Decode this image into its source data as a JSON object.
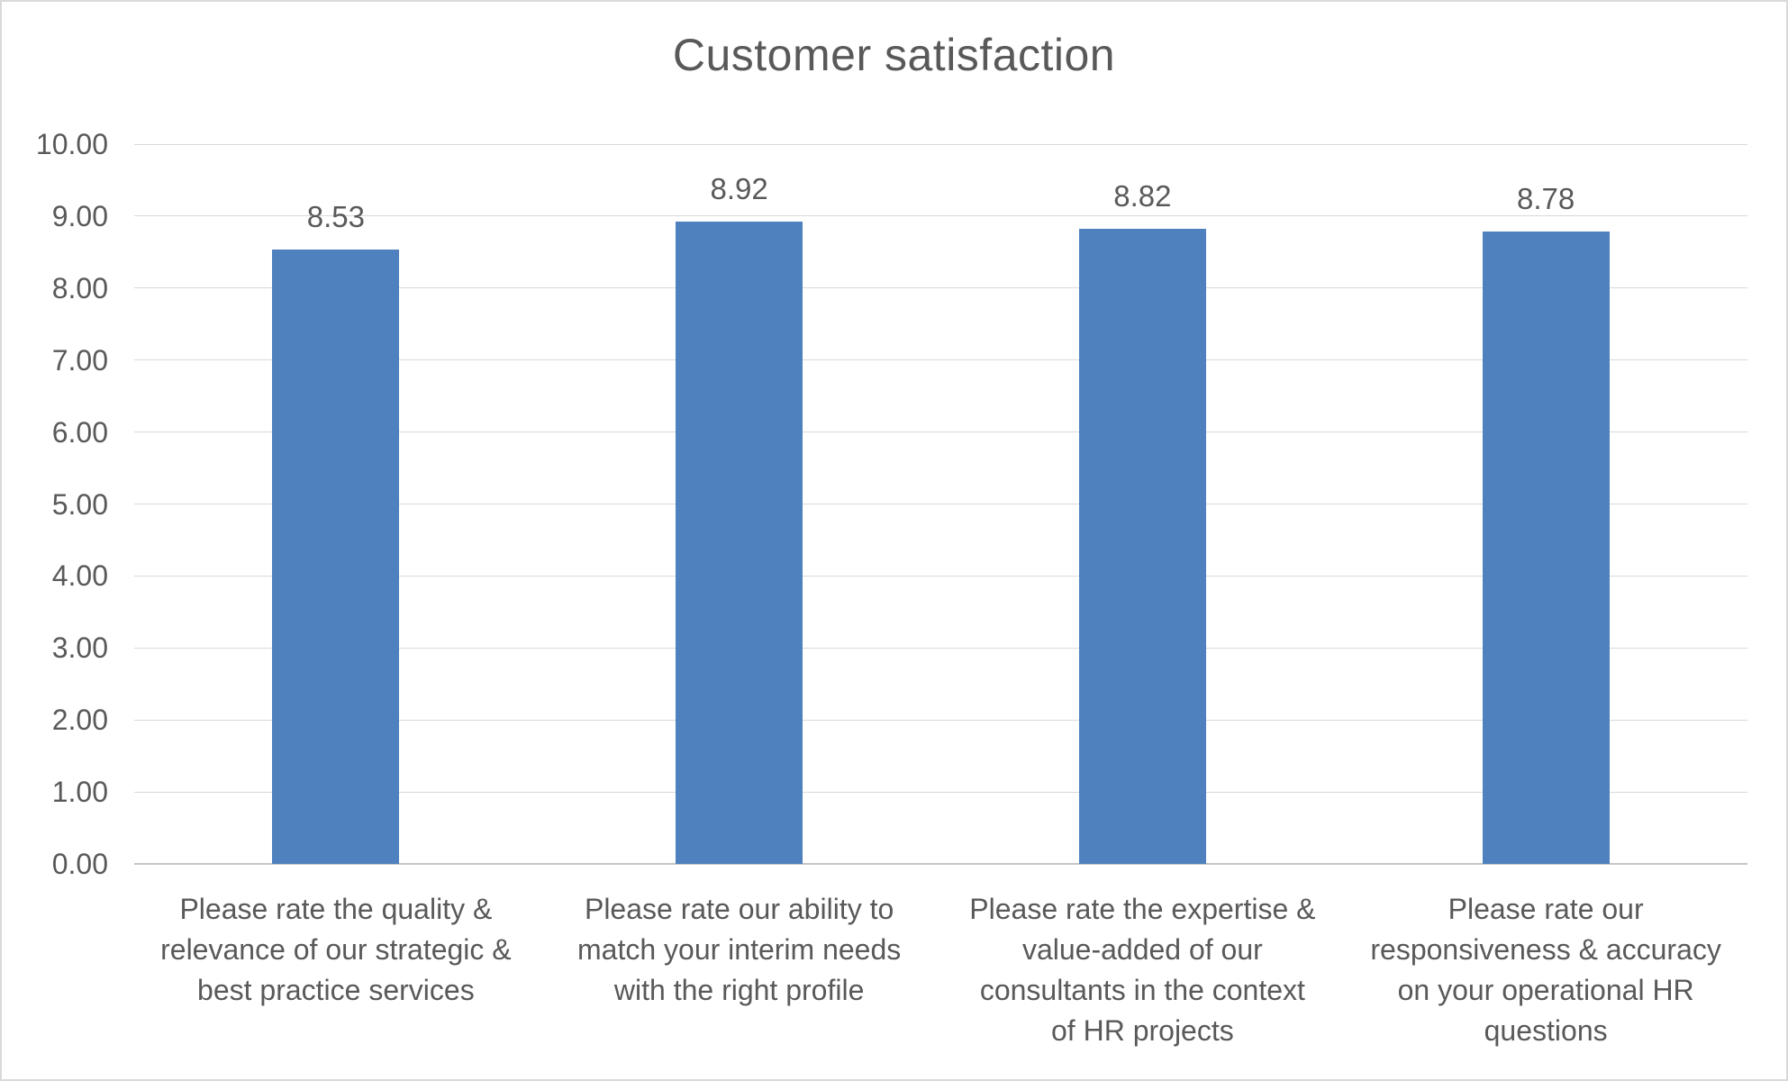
{
  "chart": {
    "title": "Customer satisfaction"
  },
  "chart_data": {
    "type": "bar",
    "title": "Customer satisfaction",
    "categories": [
      "Please rate the quality & relevance of our strategic & best practice services",
      "Please rate our ability to match your interim needs with the right profile",
      "Please rate the expertise & value-added of our consultants in the context of HR projects",
      "Please rate our responsiveness & accuracy on your operational HR questions"
    ],
    "category_lines": [
      [
        "Please rate the quality &",
        "relevance of our strategic &",
        "best practice services"
      ],
      [
        "Please rate our ability to",
        "match your interim needs",
        "with the right profile"
      ],
      [
        "Please rate the expertise &",
        "value-added of our",
        "consultants in the context",
        "of HR projects"
      ],
      [
        "Please rate our",
        "responsiveness & accuracy",
        "on your operational HR",
        "questions"
      ]
    ],
    "values": [
      8.53,
      8.92,
      8.82,
      8.78
    ],
    "data_labels": [
      "8.53",
      "8.92",
      "8.82",
      "8.78"
    ],
    "xlabel": "",
    "ylabel": "",
    "ylim": [
      0,
      10
    ],
    "yticks": [
      {
        "value": 0,
        "label": "0.00"
      },
      {
        "value": 1,
        "label": "1.00"
      },
      {
        "value": 2,
        "label": "2.00"
      },
      {
        "value": 3,
        "label": "3.00"
      },
      {
        "value": 4,
        "label": "4.00"
      },
      {
        "value": 5,
        "label": "5.00"
      },
      {
        "value": 6,
        "label": "6.00"
      },
      {
        "value": 7,
        "label": "7.00"
      },
      {
        "value": 8,
        "label": "8.00"
      },
      {
        "value": 9,
        "label": "9.00"
      },
      {
        "value": 10,
        "label": "10.00"
      }
    ],
    "grid": true,
    "legend": false,
    "colors": {
      "bar": "#4E81BD",
      "text": "#595959",
      "gridline": "#D9D9D9",
      "axis_line": "#C6C6C6",
      "page_border": "#D9D9D9",
      "background": "#FFFFFF"
    }
  }
}
